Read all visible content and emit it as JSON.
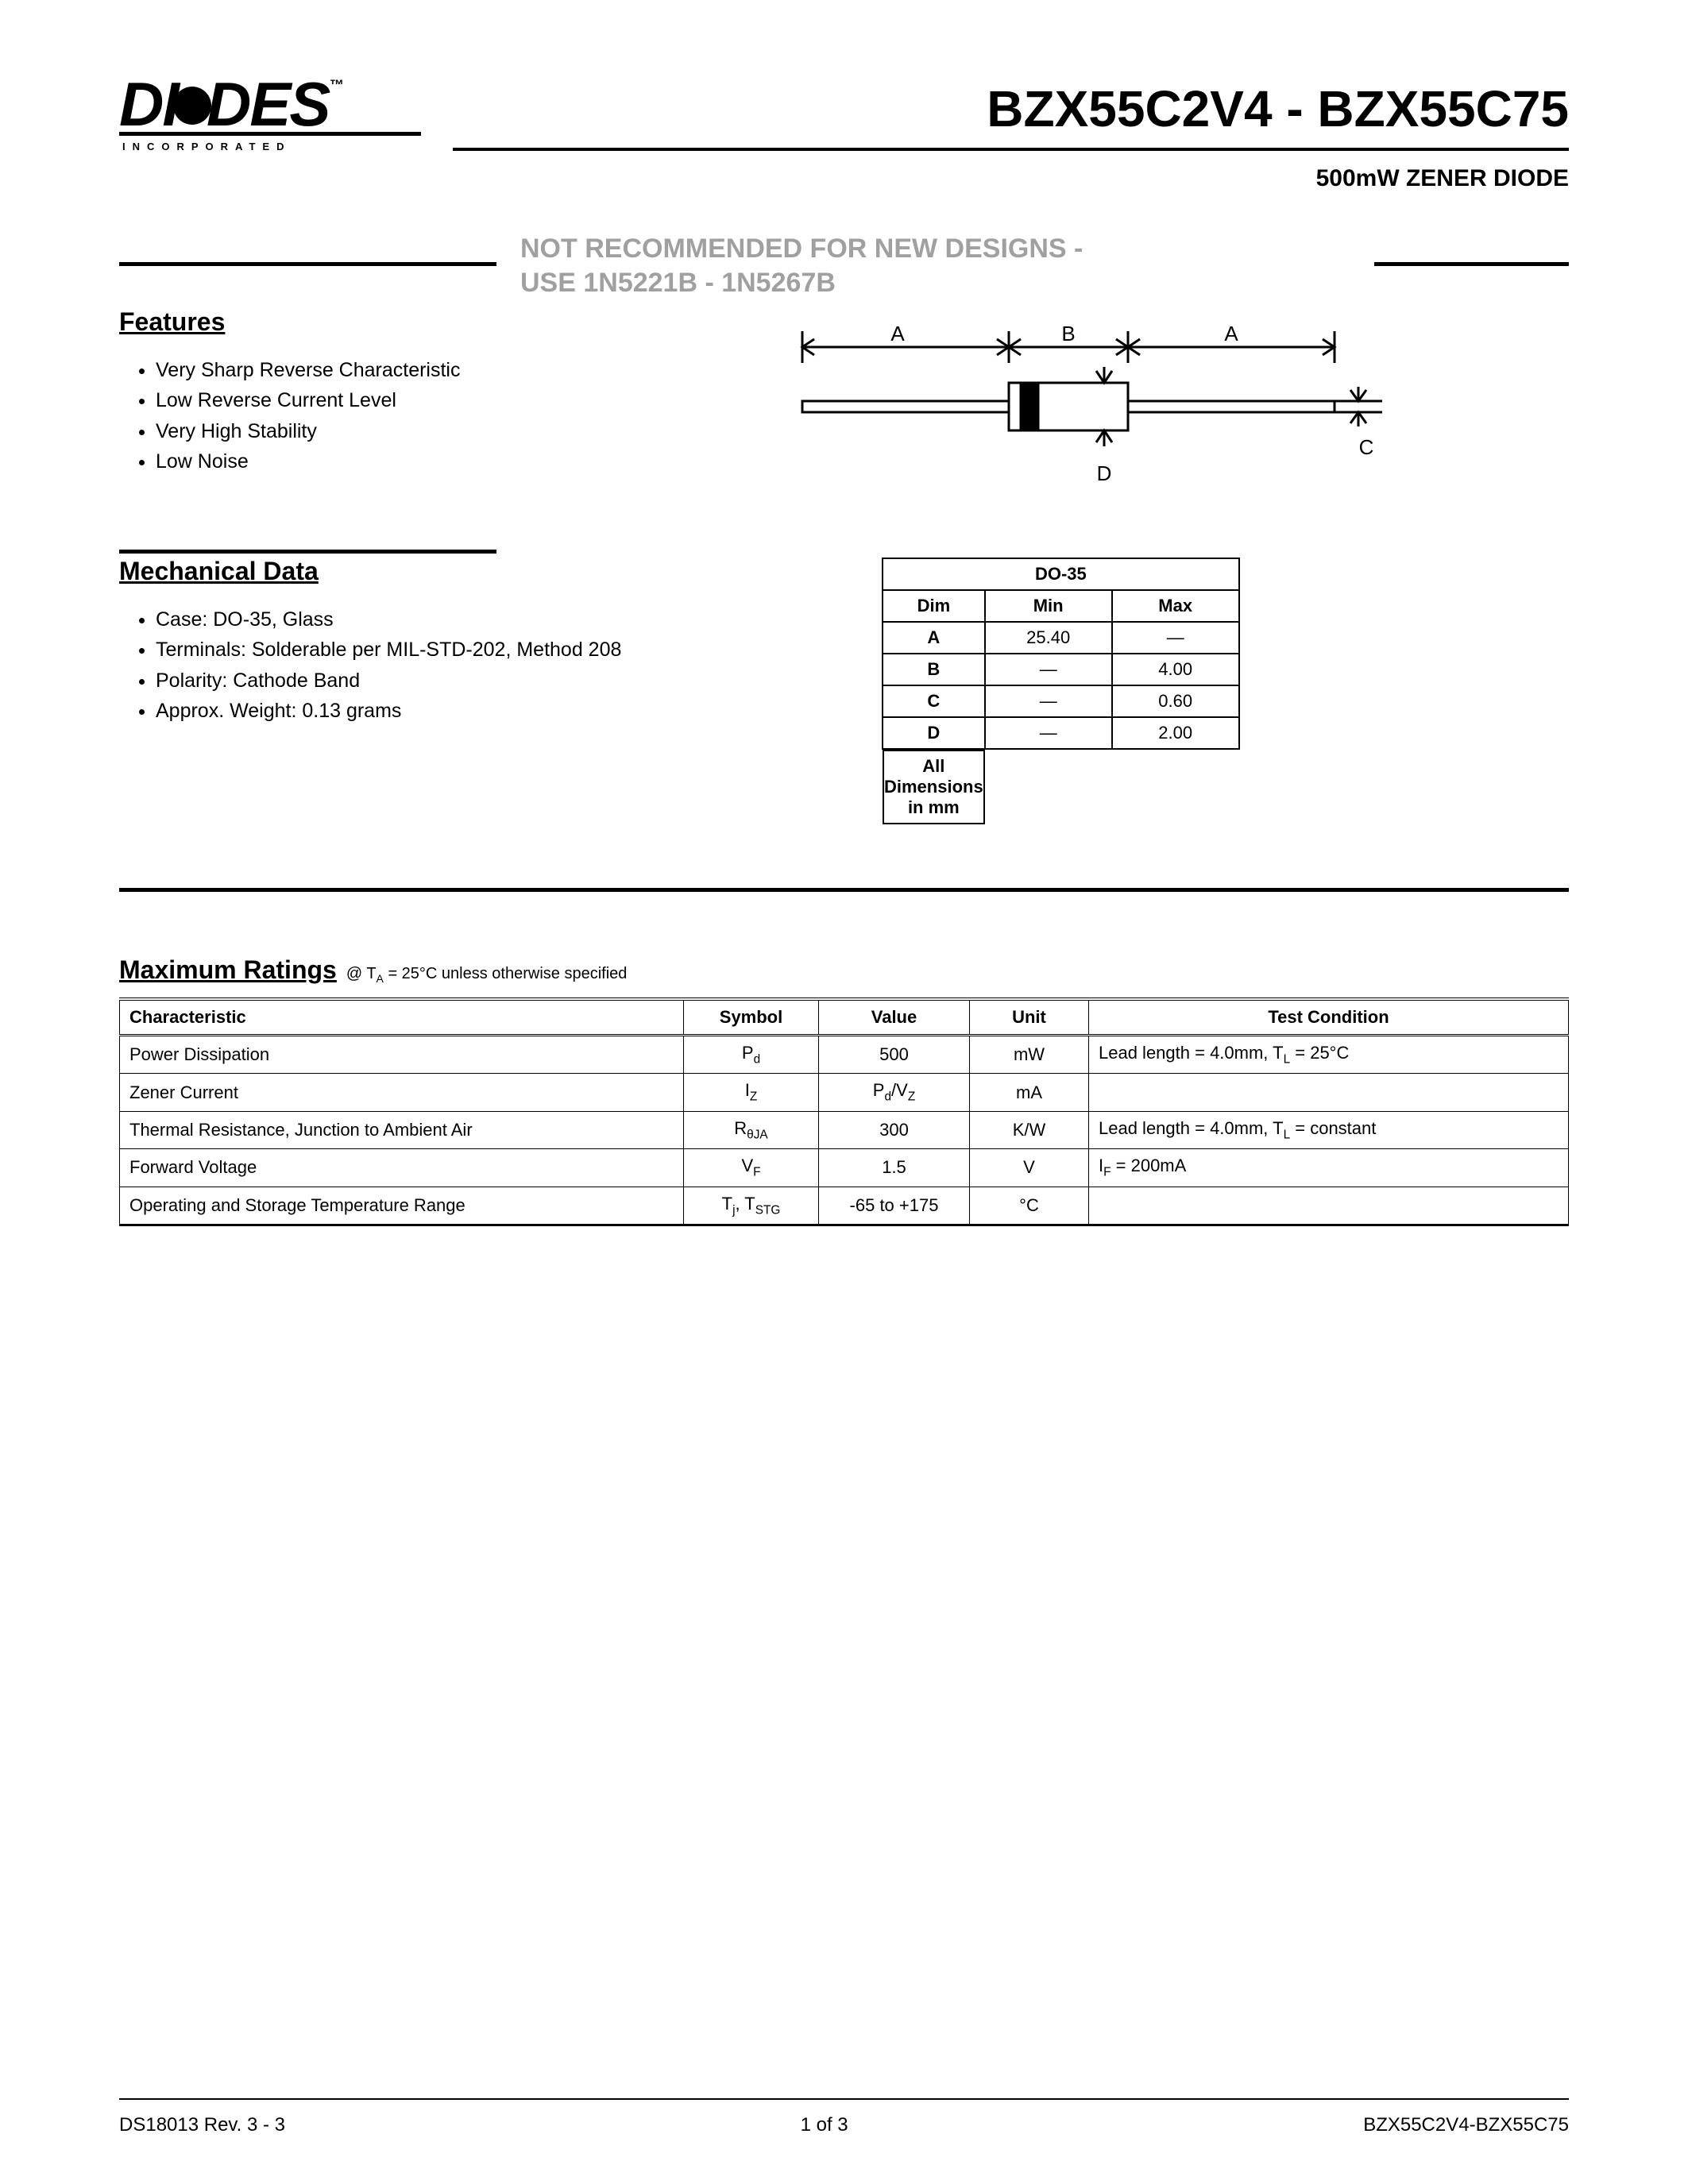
{
  "logo": {
    "name": "DIODES",
    "sub": "INCORPORATED"
  },
  "title": {
    "main": "BZX55C2V4 - BZX55C75",
    "sub": "500mW ZENER DIODE"
  },
  "notice": {
    "line1": "NOT RECOMMENDED FOR NEW DESIGNS -",
    "line2": "USE 1N5221B - 1N5267B"
  },
  "features": {
    "heading": "Features",
    "items": [
      "Very Sharp Reverse Characteristic",
      "Low Reverse Current Level",
      "Very High Stability",
      "Low Noise"
    ]
  },
  "diagram": {
    "labels": {
      "a": "A",
      "b": "B",
      "a2": "A",
      "c": "C",
      "d": "D"
    },
    "colors": {
      "stroke": "#000000",
      "fill_body": "#ffffff",
      "fill_band": "#000000"
    }
  },
  "mechanical": {
    "heading": "Mechanical Data",
    "items": [
      "Case: DO-35, Glass",
      "Terminals: Solderable per MIL-STD-202, Method 208",
      "Polarity: Cathode Band",
      "Approx. Weight: 0.13 grams"
    ]
  },
  "dim_table": {
    "title": "DO-35",
    "headers": {
      "dim": "Dim",
      "min": "Min",
      "max": "Max"
    },
    "rows": [
      {
        "dim": "A",
        "min": "25.40",
        "max": "—"
      },
      {
        "dim": "B",
        "min": "—",
        "max": "4.00"
      },
      {
        "dim": "C",
        "min": "—",
        "max": "0.60"
      },
      {
        "dim": "D",
        "min": "—",
        "max": "2.00"
      }
    ],
    "footer": "All Dimensions in mm"
  },
  "ratings": {
    "heading": "Maximum Ratings",
    "note_prefix": "@ T",
    "note_sub": "A",
    "note_rest": " = 25°C unless otherwise specified",
    "headers": {
      "char": "Characteristic",
      "sym": "Symbol",
      "val": "Value",
      "unit": "Unit",
      "tc": "Test Condition"
    },
    "rows": [
      {
        "char": "Power Dissipation",
        "sym_pre": "P",
        "sym_sub": "d",
        "sym_post": "",
        "val": "500",
        "unit": "mW",
        "tc_html": "Lead length = 4.0mm, T<sub>L</sub> = 25°C"
      },
      {
        "char": "Zener Current",
        "sym_pre": "I",
        "sym_sub": "Z",
        "sym_post": "",
        "val_html": "P<sub>d</sub>/V<sub>Z</sub>",
        "unit": "mA",
        "tc_html": ""
      },
      {
        "char": "Thermal Resistance, Junction to Ambient Air",
        "sym_pre": "R",
        "sym_sub": "θJA",
        "sym_post": "",
        "val": "300",
        "unit": "K/W",
        "tc_html": "Lead length = 4.0mm, T<sub>L</sub> = constant"
      },
      {
        "char": "Forward Voltage",
        "sym_pre": "V",
        "sym_sub": "F",
        "sym_post": "",
        "val": "1.5",
        "unit": "V",
        "tc_html": "I<sub>F</sub> = 200mA"
      },
      {
        "char": "Operating and Storage Temperature Range",
        "sym_html": "T<sub>j</sub>, T<sub>STG</sub>",
        "val": "-65 to +175",
        "unit": "°C",
        "tc_html": ""
      }
    ]
  },
  "footer": {
    "left": "DS18013 Rev. 3 - 3",
    "center": "1 of 3",
    "right": "BZX55C2V4-BZX55C75"
  }
}
